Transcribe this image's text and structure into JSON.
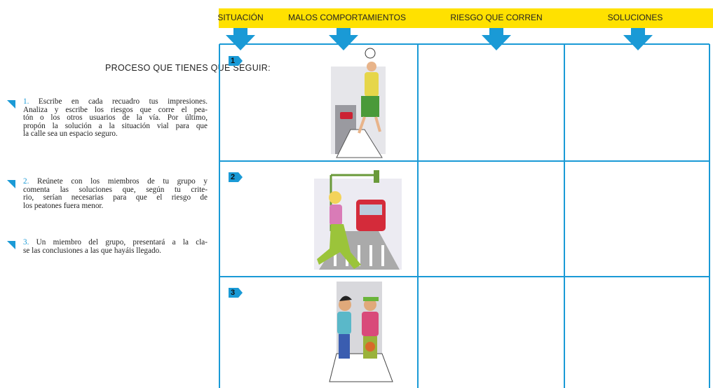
{
  "instructions": {
    "title": "PROCESO QUE TIENES QUE SEGUIR:",
    "steps": [
      {
        "number": "1.",
        "lines": [
          "Escribe en cada recuadro tus impresiones.",
          "Analiza y escribe  los riesgos  que corre el pea-",
          "tón o los otros usuarios de la vía. Por último,",
          "propón la solución a la situación vial para que",
          "la calle sea un espacio seguro."
        ]
      },
      {
        "number": "2.",
        "lines": [
          "Reúnete con los miembros de tu grupo y",
          "comenta las soluciones que, según tu crite-",
          "rio, serían necesarias para que el riesgo de",
          "los peatones fuera menor."
        ]
      },
      {
        "number": "3.",
        "lines": [
          "Un miembro del grupo, presentará a la cla-",
          "se las conclusiones a las que hayáis llegado."
        ]
      }
    ]
  },
  "table": {
    "headers": [
      "SITUACIÓN",
      "MALOS COMPORTAMIENTOS",
      "RIESGO QUE CORREN",
      "SOLUCIONES"
    ],
    "rows": [
      {
        "number": "1"
      },
      {
        "number": "2"
      },
      {
        "number": "3"
      }
    ]
  }
}
